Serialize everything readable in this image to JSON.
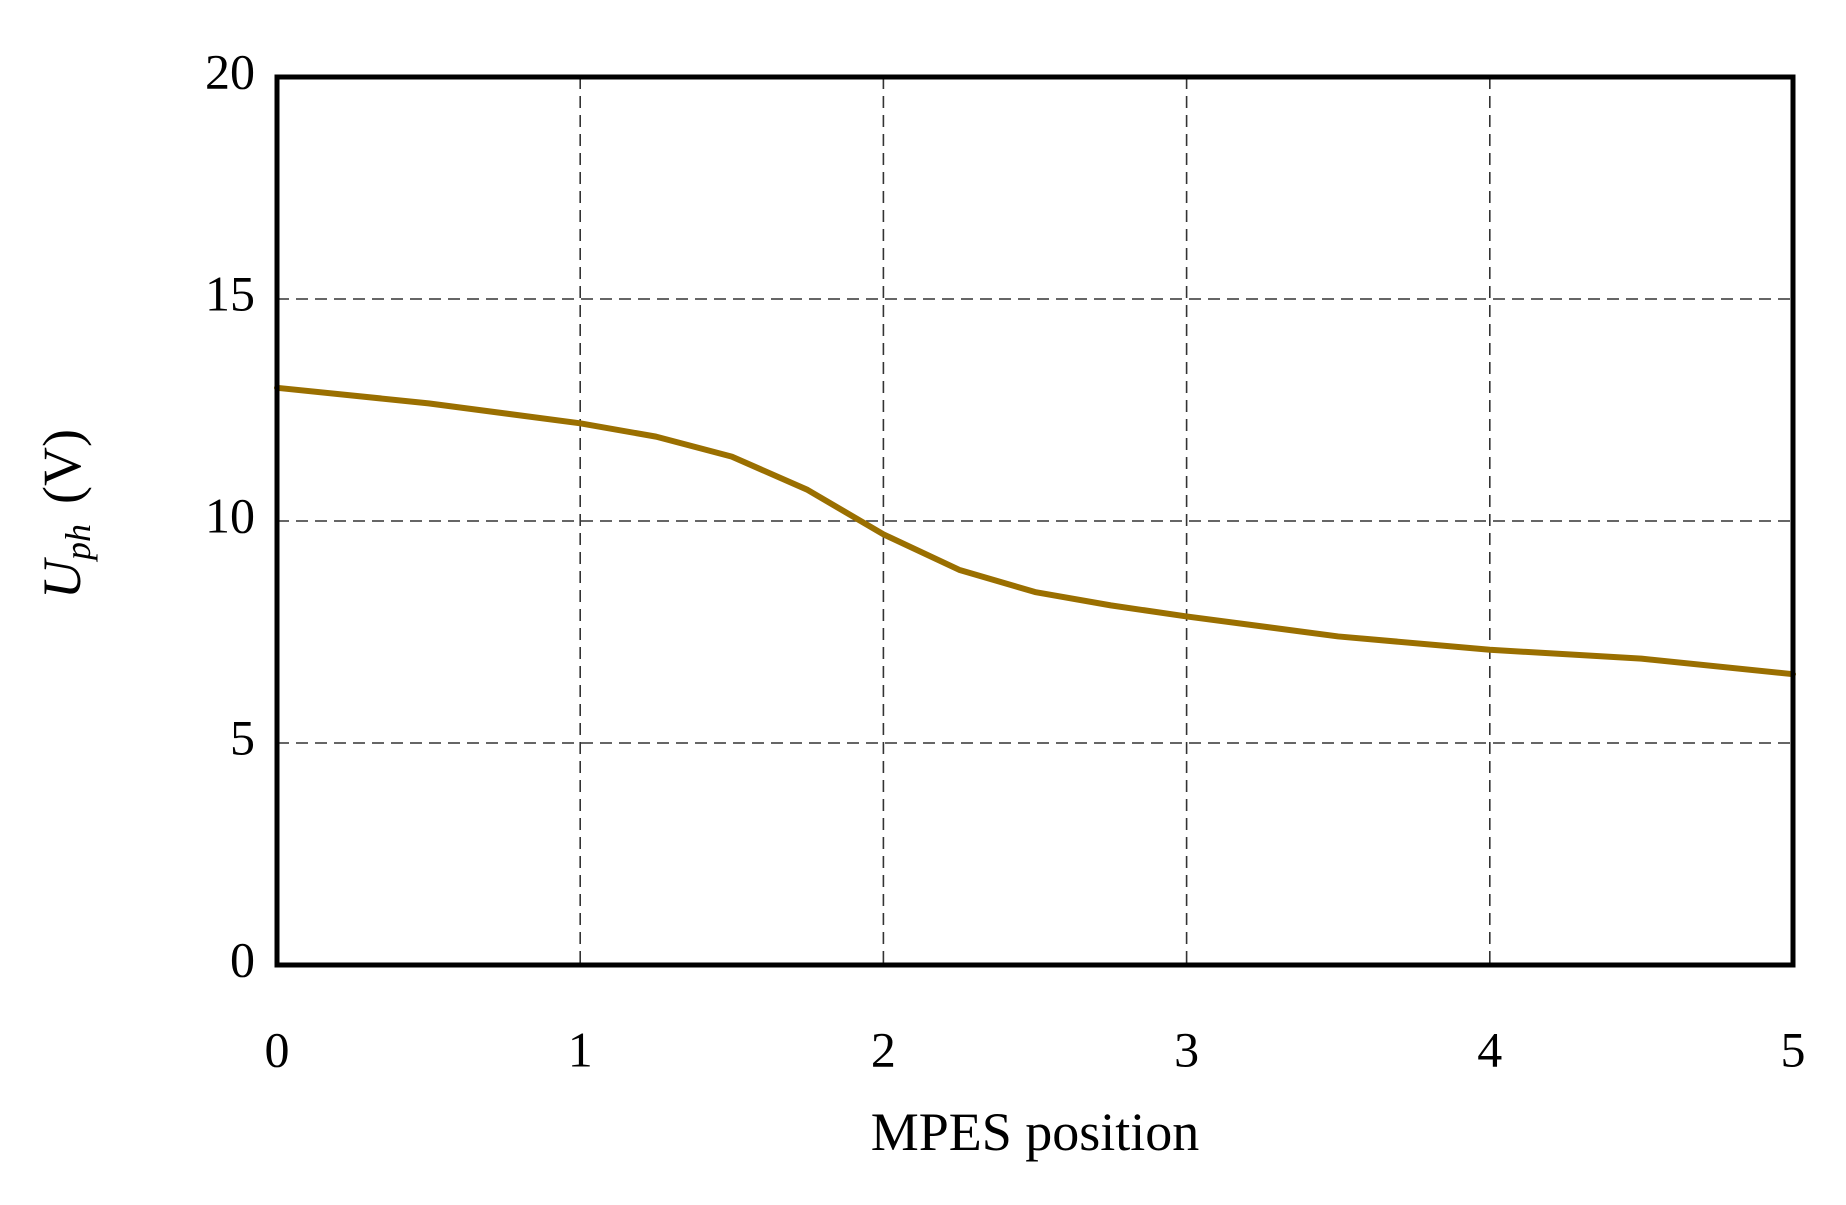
{
  "chart_data": {
    "type": "line",
    "x_label": "MPES position",
    "y_label": {
      "symbol": "U",
      "subscript": "ph",
      "unit": "(V)"
    },
    "x": [
      0,
      0.5,
      1,
      1.25,
      1.5,
      1.75,
      2,
      2.25,
      2.5,
      2.75,
      3,
      3.5,
      4,
      4.5,
      5
    ],
    "series": [
      {
        "name": "Uph",
        "color": "#9a6f00",
        "values": [
          13.0,
          12.65,
          12.2,
          11.9,
          11.45,
          10.7,
          9.7,
          8.9,
          8.4,
          8.1,
          7.85,
          7.4,
          7.1,
          6.9,
          6.55
        ]
      }
    ],
    "xlim": [
      0,
      5
    ],
    "xticks": [
      0,
      1,
      2,
      3,
      4,
      5
    ],
    "ylim": [
      0,
      20
    ],
    "yticks": [
      0,
      5,
      10,
      15,
      20
    ],
    "grid": true
  }
}
